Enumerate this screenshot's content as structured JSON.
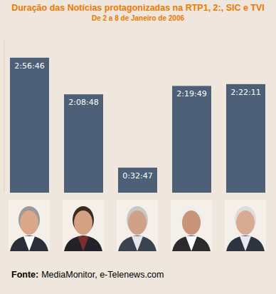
{
  "chart_data": {
    "type": "bar",
    "title": "Duração das Notícias protagonizadas na RTP1, 2:, SIC e TVI",
    "subtitle": "De 2 a 8 de Janeiro de 2006",
    "categories": [
      null,
      null,
      null,
      null,
      null
    ],
    "values": [
      10606,
      7728,
      1967,
      8389,
      8531
    ],
    "value_labels": [
      "2:56:46",
      "2:08:48",
      "0:32:47",
      "2:19:49",
      "2:22:11"
    ],
    "color": "#4e5f78",
    "ylim": [
      0,
      12000
    ],
    "tick_labels": false,
    "data_labels": true,
    "source_label": "Fonte:",
    "source": "MediaMonitor, e-Telenews.com"
  }
}
